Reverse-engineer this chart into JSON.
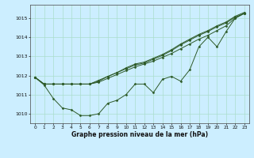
{
  "title": "Graphe pression niveau de la mer (hPa)",
  "background_color": "#cceeff",
  "grid_color": "#aaddcc",
  "line_color": "#2d5a27",
  "xlim": [
    -0.5,
    23.5
  ],
  "ylim": [
    1009.5,
    1015.7
  ],
  "y_ticks": [
    1010,
    1011,
    1012,
    1013,
    1014,
    1015
  ],
  "x_ticks": [
    0,
    1,
    2,
    3,
    4,
    5,
    6,
    7,
    8,
    9,
    10,
    11,
    12,
    13,
    14,
    15,
    16,
    17,
    18,
    19,
    20,
    21,
    22,
    23
  ],
  "s1": [
    1011.9,
    1011.5,
    1010.8,
    1010.3,
    1010.2,
    1009.9,
    1009.9,
    1010.0,
    1010.55,
    1010.7,
    1011.0,
    1011.55,
    1011.55,
    1011.1,
    1011.8,
    1011.95,
    1011.7,
    1012.3,
    1013.5,
    1014.0,
    1013.5,
    1014.3,
    1015.0,
    1015.25
  ],
  "s2": [
    1011.9,
    1011.55,
    1011.55,
    1011.55,
    1011.55,
    1011.55,
    1011.55,
    1011.65,
    1011.85,
    1012.05,
    1012.25,
    1012.45,
    1012.6,
    1012.75,
    1012.95,
    1013.15,
    1013.4,
    1013.65,
    1013.9,
    1014.1,
    1014.35,
    1014.6,
    1015.0,
    1015.25
  ],
  "s3": [
    1011.9,
    1011.55,
    1011.55,
    1011.55,
    1011.55,
    1011.55,
    1011.55,
    1011.7,
    1011.95,
    1012.15,
    1012.35,
    1012.55,
    1012.65,
    1012.85,
    1013.05,
    1013.3,
    1013.6,
    1013.85,
    1014.1,
    1014.3,
    1014.55,
    1014.75,
    1015.05,
    1015.25
  ],
  "s4": [
    1011.9,
    1011.55,
    1011.55,
    1011.55,
    1011.55,
    1011.55,
    1011.55,
    1011.75,
    1011.95,
    1012.15,
    1012.4,
    1012.6,
    1012.7,
    1012.9,
    1013.1,
    1013.35,
    1013.65,
    1013.9,
    1014.15,
    1014.35,
    1014.6,
    1014.8,
    1015.1,
    1015.3
  ]
}
